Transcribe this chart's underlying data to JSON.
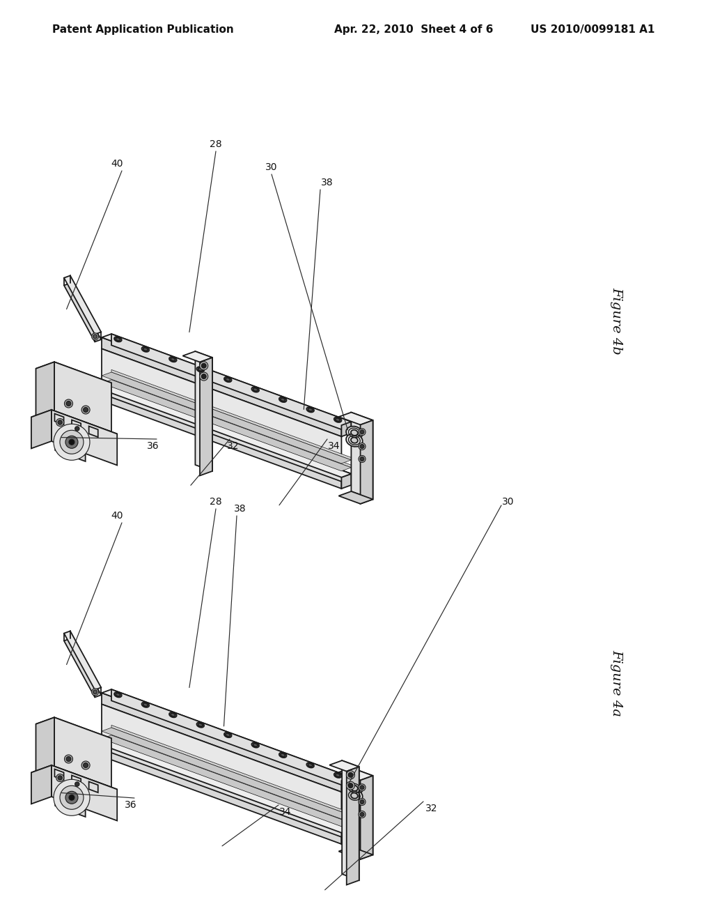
{
  "background_color": "#ffffff",
  "header_left": "Patent Application Publication",
  "header_center": "Apr. 22, 2010  Sheet 4 of 6",
  "header_right": "US 2010/0099181 A1",
  "header_fontsize": 11,
  "fig4b_label": "Figure 4b",
  "fig4a_label": "Figure 4a",
  "label_fontsize": 14,
  "ref_fontsize": 10,
  "line_color": "#1a1a1a",
  "line_width": 1.3
}
